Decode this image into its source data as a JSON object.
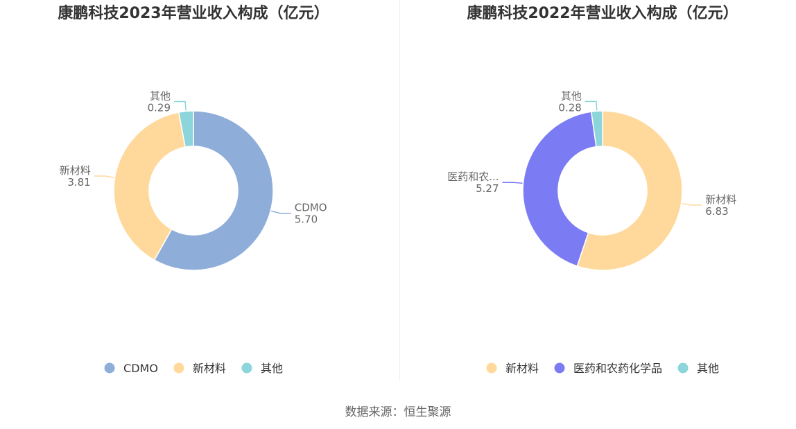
{
  "chart_data": [
    {
      "type": "pie",
      "title": "康鹏科技2023年营业收入构成（亿元）",
      "slices": [
        {
          "label": "CDMO",
          "display_label": "CDMO",
          "value": 5.7,
          "color": "#8eadd9"
        },
        {
          "label": "新材料",
          "display_label": "新材料",
          "value": 3.81,
          "color": "#ffd99b"
        },
        {
          "label": "其他",
          "display_label": "其他",
          "value": 0.29,
          "color": "#8cd5da"
        }
      ],
      "legend_position": "bottom"
    },
    {
      "type": "pie",
      "title": "康鹏科技2022年营业收入构成（亿元）",
      "slices": [
        {
          "label": "新材料",
          "display_label": "新材料",
          "value": 6.83,
          "color": "#ffd99b"
        },
        {
          "label": "医药和农药化学品",
          "display_label": "医药和农...",
          "value": 5.27,
          "color": "#7b7cf4"
        },
        {
          "label": "其他",
          "display_label": "其他",
          "value": 0.28,
          "color": "#8cd5da"
        }
      ],
      "legend_position": "bottom"
    }
  ],
  "source": "数据来源：恒生聚源"
}
